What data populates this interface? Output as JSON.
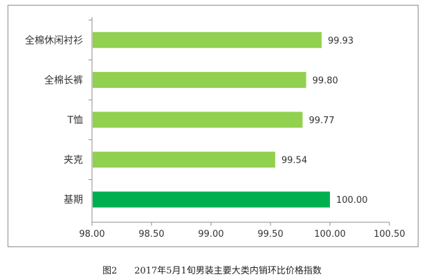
{
  "chart_data": {
    "type": "bar",
    "orientation": "horizontal",
    "categories": [
      "全棉休闲衬衫",
      "全棉长裤",
      "T恤",
      "夹克",
      "基期"
    ],
    "values": [
      99.93,
      99.8,
      99.77,
      99.54,
      100.0
    ],
    "value_labels": [
      "99.93",
      "99.80",
      "99.77",
      "99.54",
      "100.00"
    ],
    "xlim": [
      98.0,
      100.5
    ],
    "xticks": [
      "98.00",
      "98.50",
      "99.00",
      "99.50",
      "100.00",
      "100.50"
    ],
    "grid": false,
    "legend": "none",
    "colors": {
      "bar": "#92d050",
      "highlight_bar": "#00b050",
      "axis": "#8c8c8c",
      "text": "#333333"
    }
  },
  "caption": {
    "figure_label": "图2",
    "text": "2017年5月1旬男装主要大类内销环比价格指数"
  }
}
